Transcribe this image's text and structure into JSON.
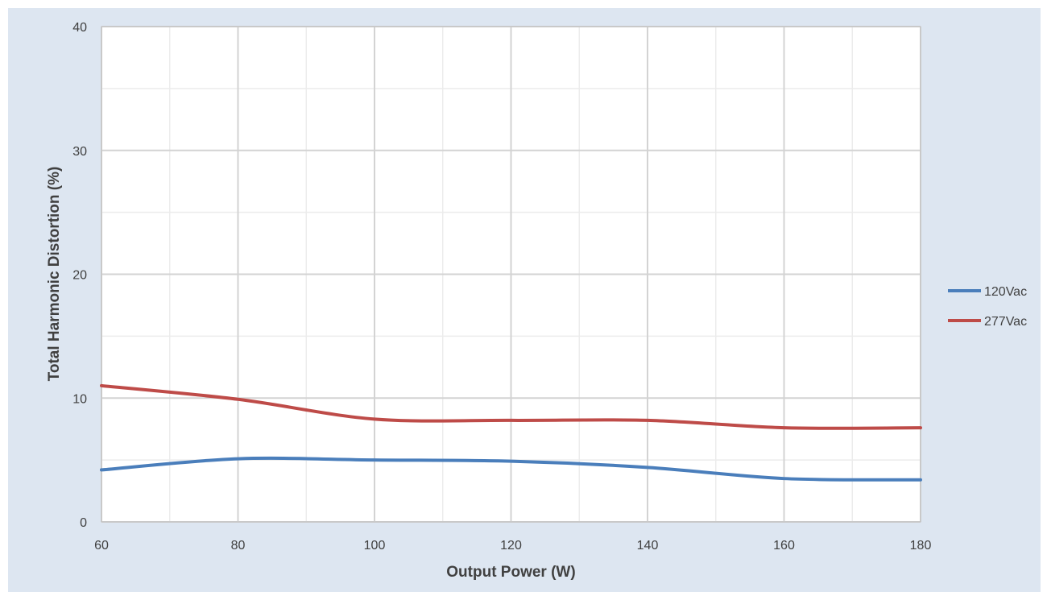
{
  "chart_data": {
    "type": "line",
    "title": "",
    "xlabel": "Output Power (W)",
    "ylabel": "Total Harmonic Distortion (%)",
    "xlim": [
      60,
      180
    ],
    "ylim": [
      0,
      40
    ],
    "x_ticks": [
      60,
      80,
      100,
      120,
      140,
      160,
      180
    ],
    "y_ticks": [
      0,
      10,
      20,
      30,
      40
    ],
    "grid": true,
    "legend_position": "right",
    "series": [
      {
        "name": "120Vac",
        "color": "#4a7ebb",
        "x": [
          60,
          80,
          100,
          120,
          140,
          160,
          180
        ],
        "y": [
          4.2,
          5.1,
          5.0,
          4.9,
          4.4,
          3.5,
          3.4
        ]
      },
      {
        "name": "277Vac",
        "color": "#be4b48",
        "x": [
          60,
          80,
          100,
          120,
          140,
          160,
          180
        ],
        "y": [
          11.0,
          9.9,
          8.3,
          8.2,
          8.2,
          7.6,
          7.6
        ]
      }
    ]
  }
}
